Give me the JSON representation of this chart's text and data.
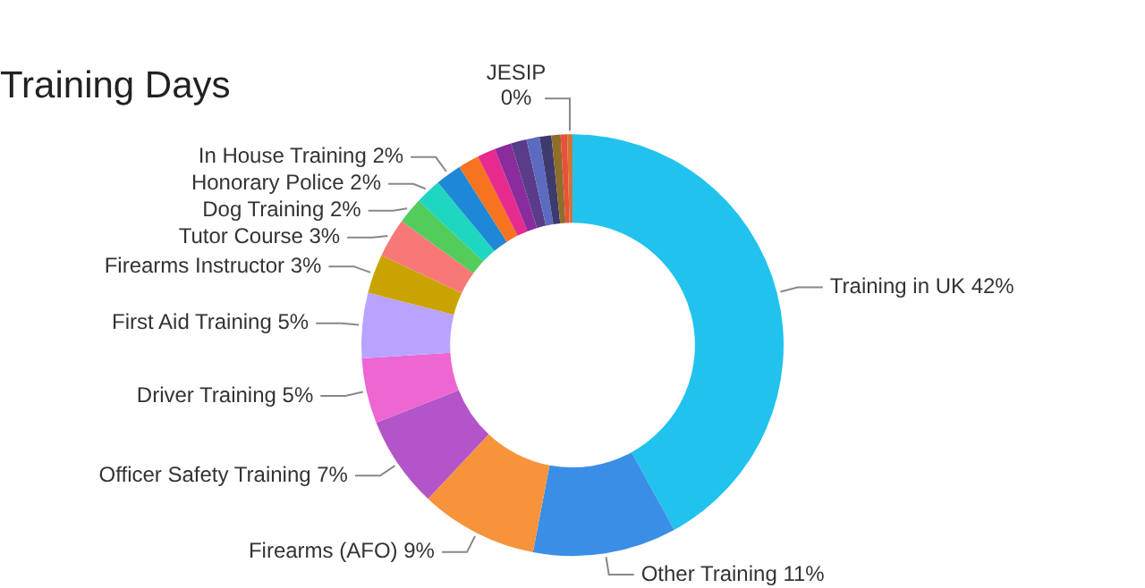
{
  "chart_data": {
    "type": "donut",
    "title": "Training Days",
    "categories": [
      "Training in UK",
      "Other Training",
      "Firearms (AFO)",
      "Officer Safety Training",
      "Driver Training",
      "First Aid Training",
      "Firearms Instructor",
      "Tutor Course",
      "Dog Training",
      "Honorary Police",
      "In House Training",
      null,
      null,
      null,
      null,
      null,
      null,
      null,
      null,
      "JESIP"
    ],
    "values": [
      42,
      11,
      9,
      7,
      5,
      5,
      3,
      3,
      2,
      2,
      2,
      1.6,
      1.4,
      1.3,
      1.2,
      1.0,
      0.9,
      0.7,
      0.5,
      0.4
    ],
    "value_labels": [
      "42%",
      "11%",
      "9%",
      "7%",
      "5%",
      "5%",
      "3%",
      "3%",
      "2%",
      "2%",
      "2%",
      null,
      null,
      null,
      null,
      null,
      null,
      null,
      null,
      "0%"
    ],
    "colors": [
      "#21c3ee",
      "#3b8ee6",
      "#f7943b",
      "#b355c9",
      "#ee66d2",
      "#b9a3ff",
      "#c9a400",
      "#f87878",
      "#52cc5a",
      "#1fd6c0",
      "#1f88d6",
      "#f6731f",
      "#e62b8d",
      "#8a2b9e",
      "#5a3c8a",
      "#5c6bc0",
      "#3d3a6e",
      "#8d6e2a",
      "#e8503a",
      "#d0743c"
    ],
    "legend": false
  }
}
